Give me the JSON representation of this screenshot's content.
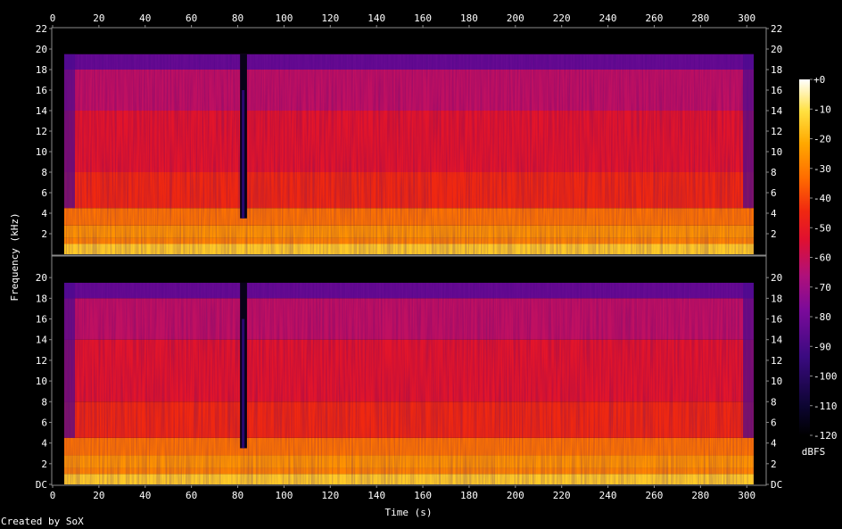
{
  "chart_data": {
    "type": "heatmap",
    "subtype": "spectrogram",
    "channels": [
      "top",
      "bottom"
    ],
    "xlabel": "Time (s)",
    "ylabel": "Frequency (kHz)",
    "xlim": [
      0,
      308
    ],
    "ylim": [
      0,
      22
    ],
    "x_ticks": [
      0,
      20,
      40,
      60,
      80,
      100,
      120,
      140,
      160,
      180,
      200,
      220,
      240,
      260,
      280,
      300
    ],
    "y_ticks_top": [
      "2",
      "4",
      "6",
      "8",
      "10",
      "12",
      "14",
      "16",
      "18",
      "20",
      "22"
    ],
    "y_ticks_bottom": [
      "DC",
      "2",
      "4",
      "6",
      "8",
      "10",
      "12",
      "14",
      "16",
      "18",
      "20"
    ],
    "y_tick_values": [
      0,
      2,
      4,
      6,
      8,
      10,
      12,
      14,
      16,
      18,
      20,
      22
    ],
    "colorbar": {
      "label": "dBFS",
      "range": [
        -120,
        0
      ],
      "ticks": [
        "+0",
        "-10",
        "-20",
        "-30",
        "-40",
        "-50",
        "-60",
        "-70",
        "-80",
        "-90",
        "-100",
        "-110",
        "-120"
      ],
      "tick_values": [
        0,
        -10,
        -20,
        -30,
        -40,
        -50,
        -60,
        -70,
        -80,
        -90,
        -100,
        -110,
        -120
      ]
    },
    "content_extent_khz": 19.5,
    "signal_start_s": 5,
    "signal_end_s": 303,
    "gap_s": [
      81,
      84
    ],
    "bands_khz": [
      {
        "from": 0,
        "to": 1,
        "level_db": -20
      },
      {
        "from": 1,
        "to": 1.6,
        "level_db": -35
      },
      {
        "from": 1.6,
        "to": 2.8,
        "level_db": -32
      },
      {
        "from": 2.8,
        "to": 4.5,
        "level_db": -38
      },
      {
        "from": 4.5,
        "to": 8,
        "level_db": -50
      },
      {
        "from": 8,
        "to": 14,
        "level_db": -58
      },
      {
        "from": 14,
        "to": 18,
        "level_db": -68
      },
      {
        "from": 18,
        "to": 19.5,
        "level_db": -88
      }
    ]
  },
  "footer": {
    "credit": "Created by SoX"
  },
  "colors": {
    "background": "#000000",
    "axis": "#8a8a8a",
    "text": "#ffffff"
  }
}
